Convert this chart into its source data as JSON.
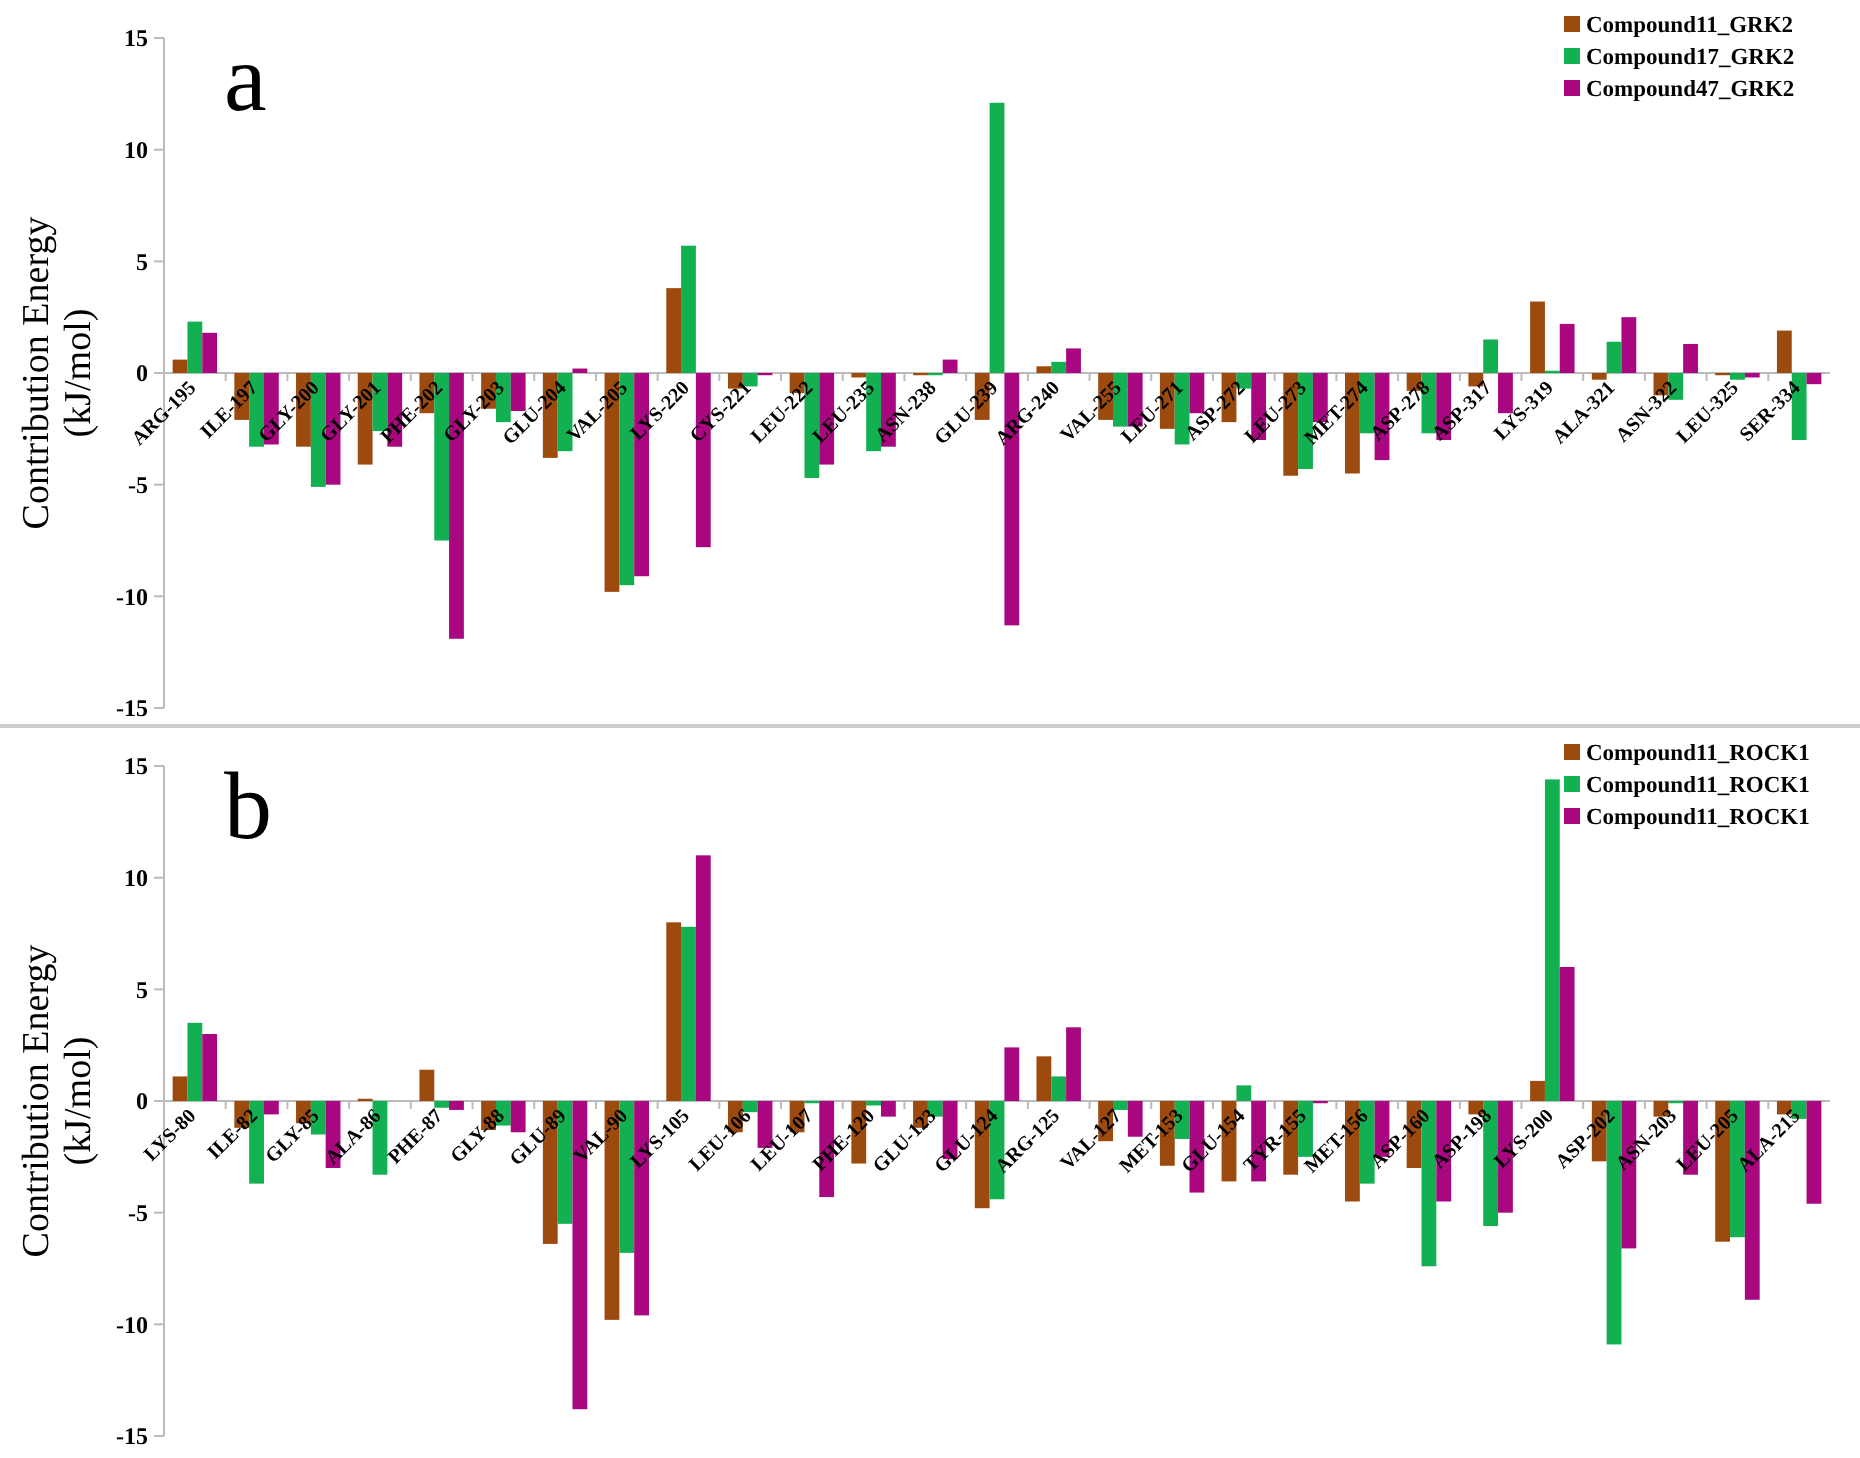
{
  "chart_data": [
    {
      "type": "bar",
      "title": "a",
      "ylabel": "Contribution Energy (kJ/mol)",
      "categories": [
        "ARG-195",
        "ILE-197",
        "GLY-200",
        "GLY-201",
        "PHE-202",
        "GLY-203",
        "GLU-204",
        "VAL-205",
        "LYS-220",
        "CYS-221",
        "LEU-222",
        "LEU-235",
        "ASN-238",
        "GLU-239",
        "ARG-240",
        "VAL-255",
        "LEU-271",
        "ASP-272",
        "LEU-273",
        "MET-274",
        "ASP-278",
        "ASP-317",
        "LYS-319",
        "ALA-321",
        "ASN-322",
        "LEU-325",
        "SER-334"
      ],
      "series": [
        {
          "name": "Compound11_GRK2",
          "color": "#9c4a0e",
          "values": [
            0.6,
            -2.1,
            -3.3,
            -4.1,
            -1.8,
            -1.6,
            -3.8,
            -9.8,
            3.8,
            -0.7,
            -0.9,
            -0.2,
            -0.1,
            -2.1,
            0.3,
            -2.1,
            -2.5,
            -2.2,
            -4.6,
            -4.5,
            -0.8,
            -0.6,
            3.2,
            -0.3,
            -1.0,
            -0.1,
            1.9
          ]
        },
        {
          "name": "Compound17_GRK2",
          "color": "#12b050",
          "values": [
            2.3,
            -3.3,
            -5.1,
            -2.6,
            -7.5,
            -2.2,
            -3.5,
            -9.5,
            5.7,
            -0.6,
            -4.7,
            -3.5,
            -0.1,
            12.1,
            0.5,
            -2.4,
            -3.2,
            -0.7,
            -4.3,
            -2.7,
            -2.7,
            1.5,
            0.1,
            1.4,
            -1.2,
            -0.3,
            -3.0
          ]
        },
        {
          "name": "Compound47_GRK2",
          "color": "#a8077f",
          "values": [
            1.8,
            -3.2,
            -5.0,
            -3.3,
            -11.9,
            -1.7,
            0.2,
            -9.1,
            -7.8,
            -0.1,
            -4.1,
            -3.3,
            0.6,
            -11.3,
            1.1,
            -2.4,
            -1.8,
            -3.0,
            -2.2,
            -3.9,
            -3.0,
            -1.8,
            2.2,
            2.5,
            1.3,
            -0.2,
            -0.5
          ]
        }
      ],
      "ylim": [
        -15,
        15
      ],
      "yticks": [
        -15,
        -10,
        -5,
        0,
        5,
        10,
        15
      ],
      "grid": false,
      "legend": "top right"
    },
    {
      "type": "bar",
      "title": "b",
      "ylabel": "Contribution Energy (kJ/mol)",
      "categories": [
        "LYS-80",
        "ILE-82",
        "GLY-85",
        "ALA-86",
        "PHE-87",
        "GLY-88",
        "GLU-89",
        "VAL-90",
        "LYS-105",
        "LEU-106",
        "LEU-107",
        "PHE-120",
        "GLU-123",
        "GLU-124",
        "ARG-125",
        "VAL-127",
        "MET-153",
        "GLU-154",
        "TYR-155",
        "MET-156",
        "ASP-160",
        "ASP-198",
        "LYS-200",
        "ASP-202",
        "ASN-203",
        "LEU-205",
        "ALA-215"
      ],
      "series": [
        {
          "name": "Compound11_ROCK1",
          "color": "#9c4a0e",
          "values": [
            1.1,
            -1.2,
            -1.0,
            0.1,
            1.4,
            -1.3,
            -6.4,
            -9.8,
            8.0,
            -1.4,
            -1.4,
            -2.8,
            -1.2,
            -4.8,
            2.0,
            -1.8,
            -2.9,
            -3.6,
            -3.3,
            -4.5,
            -3.0,
            -0.6,
            0.9,
            -2.7,
            -0.7,
            -6.3,
            -0.6
          ]
        },
        {
          "name": "Compound11_ROCK1",
          "color": "#12b050",
          "values": [
            3.5,
            -3.7,
            -1.5,
            -3.3,
            -0.3,
            -1.1,
            -5.5,
            -6.8,
            7.8,
            -0.5,
            -0.1,
            -0.2,
            -0.7,
            -4.4,
            1.1,
            -0.4,
            -1.7,
            0.7,
            -2.5,
            -3.7,
            -7.4,
            -5.6,
            14.4,
            -10.9,
            -0.1,
            -6.1,
            -0.8
          ]
        },
        {
          "name": "Compound11_ROCK1",
          "color": "#a8077f",
          "values": [
            3.0,
            -0.6,
            -3.0,
            0.0,
            -0.4,
            -1.4,
            -13.8,
            -9.6,
            11.0,
            -2.1,
            -4.3,
            -0.7,
            -2.6,
            2.4,
            3.3,
            -1.6,
            -4.1,
            -3.6,
            -0.1,
            -2.5,
            -4.5,
            -5.0,
            6.0,
            -6.6,
            -3.3,
            -8.9,
            -4.6
          ]
        }
      ],
      "ylim": [
        -15,
        15
      ],
      "yticks": [
        -15,
        -10,
        -5,
        0,
        5,
        10,
        15
      ],
      "grid": false,
      "legend": "top right"
    }
  ]
}
